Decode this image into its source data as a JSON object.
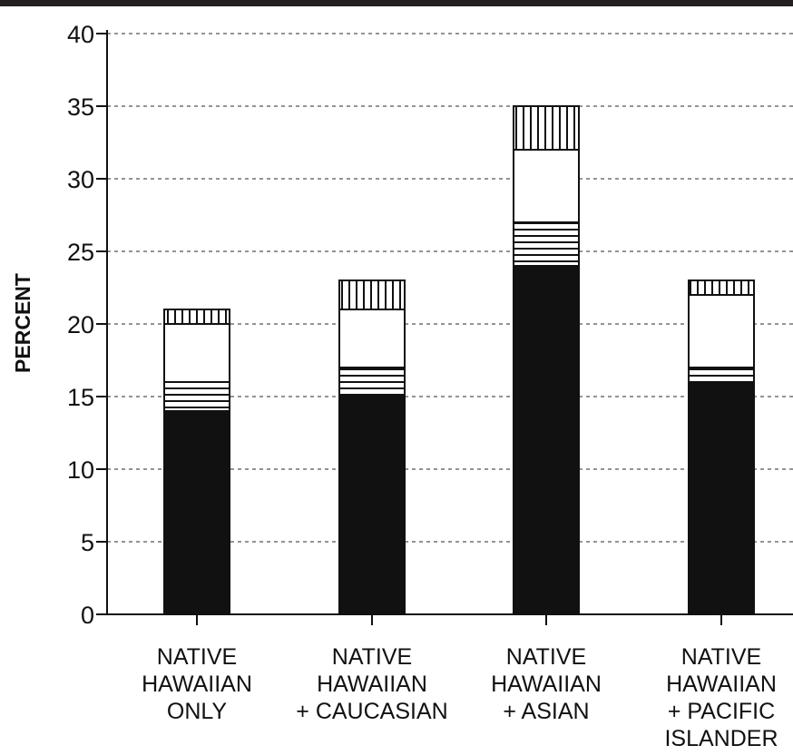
{
  "chart_data": {
    "type": "bar",
    "stacked": true,
    "title": "",
    "xlabel": "",
    "ylabel": "PERCENT",
    "ylim": [
      0,
      40
    ],
    "yticks": [
      "0",
      "5",
      "10",
      "15",
      "20",
      "25",
      "30",
      "35",
      "40"
    ],
    "grid": "horizontal dashed",
    "categories": [
      [
        "NATIVE",
        "HAWAIIAN",
        "ONLY"
      ],
      [
        "NATIVE",
        "HAWAIIAN",
        "+ CAUCASIAN"
      ],
      [
        "NATIVE",
        "HAWAIIAN",
        "+ ASIAN"
      ],
      [
        "NATIVE",
        "HAWAIIAN",
        "+ PACIFIC",
        "ISLANDER"
      ]
    ],
    "series": [
      {
        "pattern": "solid-black",
        "values": [
          14,
          15,
          24,
          16
        ]
      },
      {
        "pattern": "horizontal-lines",
        "values": [
          2,
          2,
          3,
          1
        ]
      },
      {
        "pattern": "white",
        "values": [
          4,
          4,
          5,
          5
        ]
      },
      {
        "pattern": "vertical-lines",
        "values": [
          1,
          2,
          3,
          1
        ]
      }
    ],
    "colors": {
      "ink": "#111111",
      "grid": "#555555"
    }
  }
}
